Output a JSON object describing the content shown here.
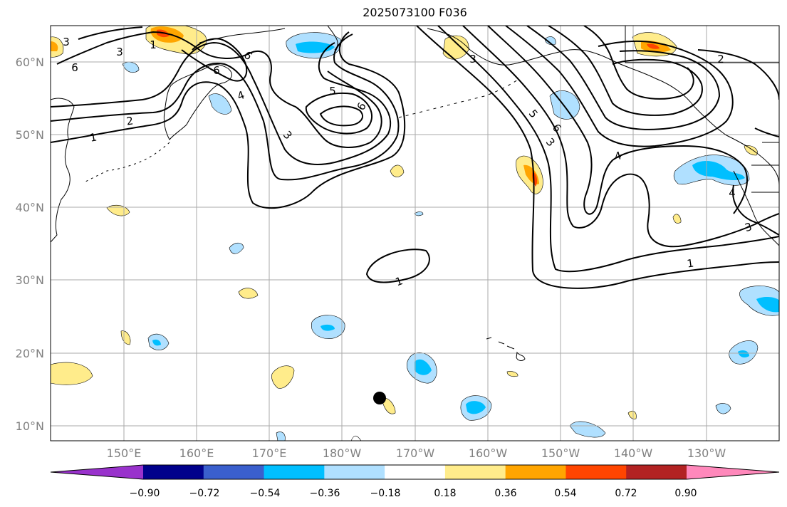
{
  "title": "2025073100 F036",
  "lat_labels": [
    "60°N",
    "50°N",
    "40°N",
    "30°N",
    "20°N",
    "10°N"
  ],
  "lon_labels": [
    "150°E",
    "160°E",
    "170°E",
    "180°W",
    "170°W",
    "160°W",
    "150°W",
    "140°W",
    "130°W"
  ],
  "contour_labels": [
    "1",
    "2",
    "3",
    "4",
    "5",
    "6"
  ],
  "colorbar": {
    "ticks": [
      "−0.90",
      "−0.72",
      "−0.54",
      "−0.36",
      "−0.18",
      "0.18",
      "0.36",
      "0.54",
      "0.72",
      "0.90"
    ],
    "colors": [
      "#9932cc",
      "#00008b",
      "#3a5fcd",
      "#00bfff",
      "#b0e0ff",
      "#ffffff",
      "#ffec8b",
      "#ffa500",
      "#ff4500",
      "#b22222",
      "#ff88bb"
    ]
  },
  "marker": "storm-position"
}
